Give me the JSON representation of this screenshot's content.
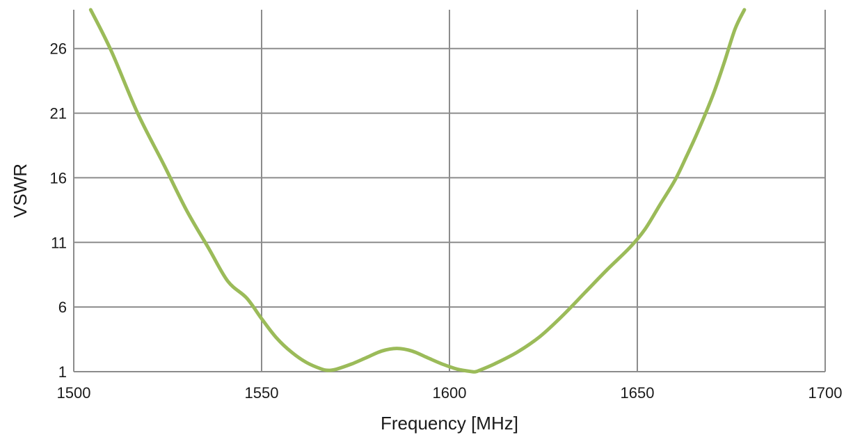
{
  "chart_data": {
    "type": "line",
    "xlabel": "Frequency [MHz]",
    "ylabel": "VSWR",
    "xlim": [
      1500,
      1700
    ],
    "ylim": [
      1,
      29
    ],
    "xticks": [
      1500,
      1550,
      1600,
      1650,
      1700
    ],
    "yticks": [
      1,
      6,
      11,
      16,
      21,
      26
    ],
    "grid": true,
    "colors": {
      "line": "#9bbb59",
      "grid": "#8c8c8c"
    },
    "series": [
      {
        "x": [
          1504.5,
          1510,
          1517,
          1524,
          1530,
          1536,
          1541,
          1546,
          1550,
          1554,
          1558,
          1562,
          1566,
          1568,
          1570,
          1574,
          1578,
          1582,
          1586,
          1590,
          1594,
          1598,
          1602,
          1606,
          1607,
          1608,
          1612,
          1618,
          1624,
          1630,
          1636,
          1642,
          1648,
          1652,
          1656,
          1660,
          1663,
          1666,
          1670,
          1673,
          1676,
          1678.5
        ],
        "y": [
          29,
          25.8,
          21,
          17,
          13.5,
          10.5,
          8,
          6.7,
          5.1,
          3.6,
          2.5,
          1.7,
          1.2,
          1.1,
          1.2,
          1.6,
          2.1,
          2.6,
          2.8,
          2.6,
          2.1,
          1.6,
          1.2,
          1.0,
          1.0,
          1.1,
          1.6,
          2.5,
          3.7,
          5.3,
          7.1,
          8.9,
          10.6,
          12,
          13.9,
          15.8,
          17.6,
          19.5,
          22.3,
          24.8,
          27.5,
          29
        ]
      }
    ]
  }
}
